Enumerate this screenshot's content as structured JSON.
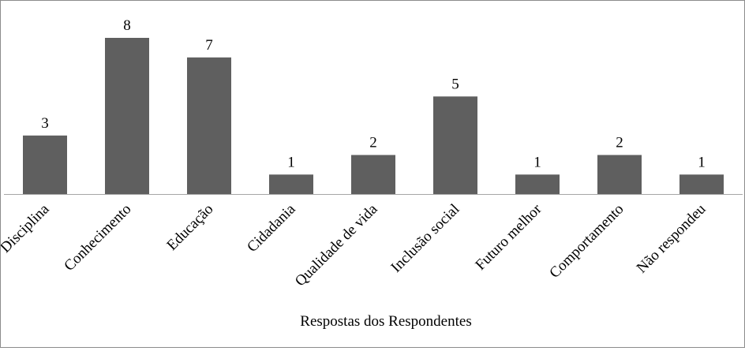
{
  "chart_data": {
    "type": "bar",
    "categories": [
      "Disciplina",
      "Conhecimento",
      "Educação",
      "Cidadania",
      "Qualidade de vida",
      "Inclusão social",
      "Futuro melhor",
      "Comportamento",
      "Não respondeu"
    ],
    "values": [
      3,
      8,
      7,
      1,
      2,
      5,
      1,
      2,
      1
    ],
    "title": "",
    "xlabel": "Respostas dos Respondentes",
    "ylabel": "",
    "ylim": [
      0,
      8
    ],
    "grid": false,
    "legend": "none",
    "data_labels": true,
    "bar_color": "#5f5f5f",
    "axis_color": "#a6a6a6"
  }
}
